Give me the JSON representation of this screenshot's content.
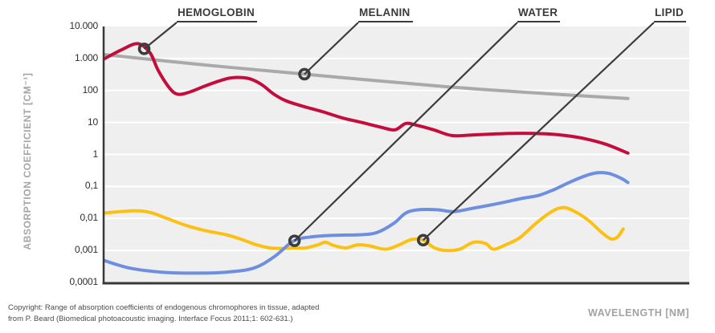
{
  "y_axis": {
    "title": "ABSORPTION COEFFICIENT [CM⁻¹]",
    "ticks": [
      {
        "label": "10.000",
        "exp": 4
      },
      {
        "label": "1.000",
        "exp": 3
      },
      {
        "label": "100",
        "exp": 2
      },
      {
        "label": "10",
        "exp": 1
      },
      {
        "label": "1",
        "exp": 0
      },
      {
        "label": "0,1",
        "exp": -1
      },
      {
        "label": "0,01",
        "exp": -2
      },
      {
        "label": "0,001",
        "exp": -3
      },
      {
        "label": "0,0001",
        "exp": -4
      }
    ]
  },
  "x_axis": {
    "title": "WAVELENGTH [NM]"
  },
  "footer": {
    "copyright_line1": "Copyright: Range of absorption coefficients of endogenous chromophores in tissue, adapted",
    "copyright_line2": "from P. Beard (Biomedical photoacoustic imaging. Interface Focus 2011;1: 602-631.)"
  },
  "colors": {
    "hemoglobin": "#c40d3c",
    "melanin": "#a9a9a9",
    "water": "#6e8fdf",
    "lipid": "#fcc013",
    "annotation": "#3c3c3c",
    "plot_background": "#efefef",
    "gridline": "#ffffff",
    "axis_line": "#383838"
  },
  "chart_data": {
    "type": "line",
    "title": "",
    "xlabel": "WAVELENGTH [NM]",
    "ylabel": "ABSORPTION COEFFICIENT [CM⁻¹]",
    "y_scale": "log",
    "ylim": [
      0.0001,
      10000
    ],
    "x_tick_labels": [],
    "grid": "horizontal white lines on light gray panel, one per decade",
    "legend": "callout labels above plot connected by diagonal lines to ring markers on each curve",
    "note": "x axis has no numeric tick labels; x given as normalized 0-1 position across plot width",
    "series": [
      {
        "name": "HEMOGLOBIN",
        "color": "#c40d3c",
        "x_norm": [
          0,
          0.03,
          0.057,
          0.078,
          0.092,
          0.112,
          0.126,
          0.146,
          0.174,
          0.208,
          0.228,
          0.249,
          0.269,
          0.29,
          0.31,
          0.337,
          0.372,
          0.406,
          0.44,
          0.474,
          0.497,
          0.515,
          0.533,
          0.563,
          0.594,
          0.631,
          0.672,
          0.713,
          0.754,
          0.788,
          0.822,
          0.857,
          0.895
        ],
        "values": [
          980,
          1900,
          2900,
          1500,
          420,
          115,
          76,
          90,
          143,
          230,
          256,
          230,
          152,
          76,
          48,
          33,
          22,
          14,
          10,
          7,
          5.9,
          9.3,
          8.3,
          5.9,
          3.9,
          4.1,
          4.4,
          4.6,
          4.4,
          3.9,
          3.1,
          2.1,
          1.1
        ],
        "marker": {
          "x_norm": 0.068,
          "value": 2000
        }
      },
      {
        "name": "MELANIN",
        "color": "#a9a9a9",
        "x_norm": [
          0,
          0.167,
          0.342,
          0.577,
          0.754,
          0.895
        ],
        "values": [
          1320,
          640,
          323,
          135,
          80,
          56
        ],
        "marker": {
          "x_norm": 0.342,
          "value": 323
        }
      },
      {
        "name": "WATER",
        "color": "#6e8fdf",
        "x_norm": [
          0,
          0.044,
          0.098,
          0.153,
          0.208,
          0.255,
          0.29,
          0.324,
          0.358,
          0.399,
          0.44,
          0.467,
          0.495,
          0.515,
          0.536,
          0.57,
          0.597,
          0.631,
          0.672,
          0.713,
          0.743,
          0.768,
          0.795,
          0.822,
          0.843,
          0.863,
          0.884,
          0.895
        ],
        "values": [
          0.00048,
          0.00028,
          0.00021,
          0.000195,
          0.00021,
          0.00028,
          0.00063,
          0.002,
          0.0027,
          0.003,
          0.0031,
          0.0037,
          0.0071,
          0.0147,
          0.0186,
          0.0186,
          0.0164,
          0.021,
          0.029,
          0.042,
          0.053,
          0.079,
          0.134,
          0.214,
          0.268,
          0.254,
          0.178,
          0.133
        ],
        "marker": {
          "x_norm": 0.325,
          "value": 0.002
        }
      },
      {
        "name": "LIPID",
        "color": "#fcc013",
        "x_norm": [
          0,
          0.03,
          0.057,
          0.078,
          0.105,
          0.139,
          0.174,
          0.208,
          0.235,
          0.26,
          0.283,
          0.303,
          0.324,
          0.344,
          0.365,
          0.378,
          0.392,
          0.413,
          0.433,
          0.454,
          0.481,
          0.504,
          0.525,
          0.545,
          0.563,
          0.583,
          0.607,
          0.631,
          0.652,
          0.665,
          0.686,
          0.71,
          0.738,
          0.765,
          0.786,
          0.809,
          0.829,
          0.85,
          0.866,
          0.877,
          0.887
        ],
        "values": [
          0.0148,
          0.0165,
          0.0174,
          0.0155,
          0.0104,
          0.0061,
          0.0041,
          0.0031,
          0.0022,
          0.0015,
          0.0012,
          0.00115,
          0.0012,
          0.0012,
          0.0015,
          0.0018,
          0.00143,
          0.0012,
          0.0015,
          0.00138,
          0.00109,
          0.0015,
          0.0022,
          0.0021,
          0.00124,
          0.001,
          0.00109,
          0.0018,
          0.00164,
          0.00109,
          0.0015,
          0.0025,
          0.0071,
          0.0165,
          0.022,
          0.0148,
          0.0083,
          0.0037,
          0.0023,
          0.0026,
          0.0047
        ],
        "marker": {
          "x_norm": 0.545,
          "value": 0.0021
        }
      }
    ]
  }
}
